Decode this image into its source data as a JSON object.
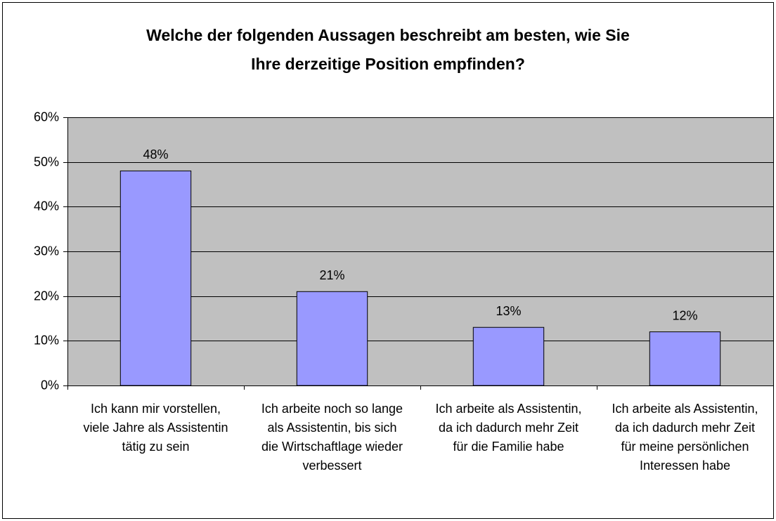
{
  "chart_data": {
    "type": "bar",
    "title": [
      "Welche der folgenden Aussagen beschreibt am besten, wie Sie",
      "Ihre derzeitige Position empfinden?"
    ],
    "categories": [
      "Ich kann mir vorstellen, viele Jahre als Assistentin tätig zu sein",
      "Ich arbeite noch so lange als Assistentin, bis sich die Wirtschaftlage wieder verbessert",
      "Ich arbeite als Assistentin, da ich dadurch mehr Zeit für die Familie habe",
      "Ich arbeite als Assistentin, da ich dadurch mehr Zeit für meine persönlichen Interessen habe"
    ],
    "values": [
      48,
      21,
      13,
      12
    ],
    "value_labels": [
      "48%",
      "21%",
      "13%",
      "12%"
    ],
    "color": "#9999ff",
    "ylim": [
      0,
      60
    ],
    "yticks": [
      {
        "value": 0,
        "label": "0%"
      },
      {
        "value": 10,
        "label": "10%"
      },
      {
        "value": 20,
        "label": "20%"
      },
      {
        "value": 30,
        "label": "30%"
      },
      {
        "value": 40,
        "label": "40%"
      },
      {
        "value": 50,
        "label": "50%"
      },
      {
        "value": 60,
        "label": "60%"
      }
    ],
    "grid": true
  }
}
